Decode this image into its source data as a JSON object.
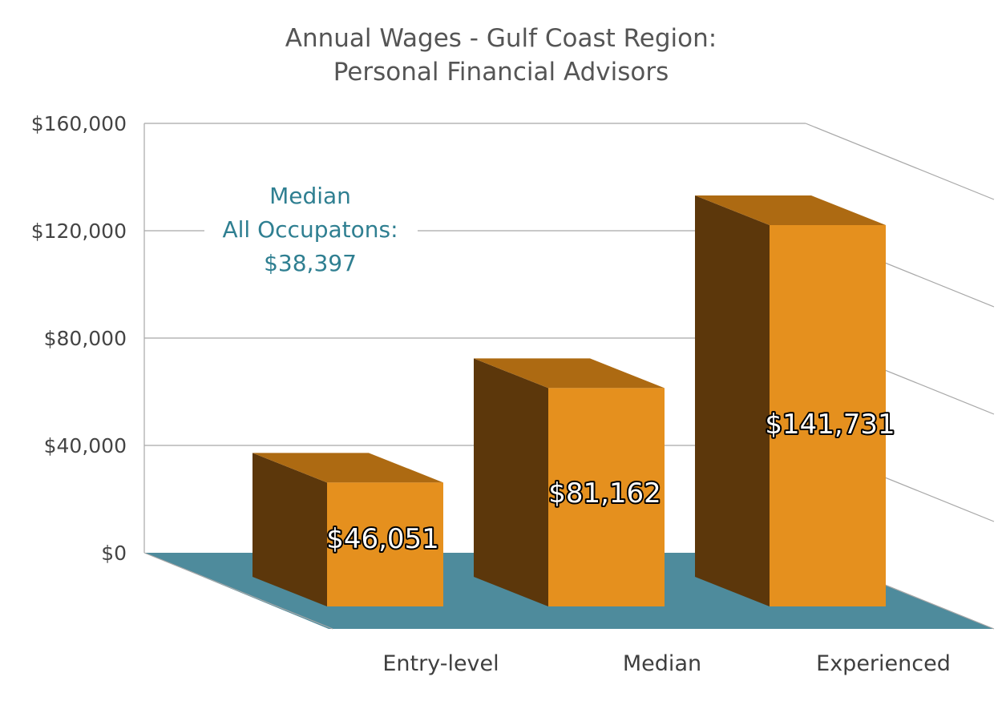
{
  "chart_data": {
    "type": "bar",
    "title": [
      "Annual Wages - Gulf Coast Region:",
      "Personal Financial Advisors"
    ],
    "categories": [
      "Entry-level",
      "Median",
      "Experienced"
    ],
    "series": [
      {
        "values": [
          46051,
          81162,
          141731
        ]
      }
    ],
    "data_labels": [
      "$46,051",
      "$81,162",
      "$141,731"
    ],
    "y_ticks": [
      0,
      40000,
      80000,
      120000,
      160000
    ],
    "y_tick_labels": [
      "$0",
      "$40,000",
      "$80,000",
      "$120,000",
      "$160,000"
    ],
    "ylim": [
      0,
      160000
    ],
    "grid": true,
    "legend": "none",
    "three_d": true,
    "colors": {
      "bar_front": "#e5901e",
      "bar_side": "#5c370b",
      "bar_top": "#ad6a12",
      "floor": "#4e8b9c",
      "callout_text": "#2f7f91"
    },
    "annotation": {
      "lines": [
        "Median",
        "All Occupatons:",
        "$38,397"
      ]
    }
  }
}
